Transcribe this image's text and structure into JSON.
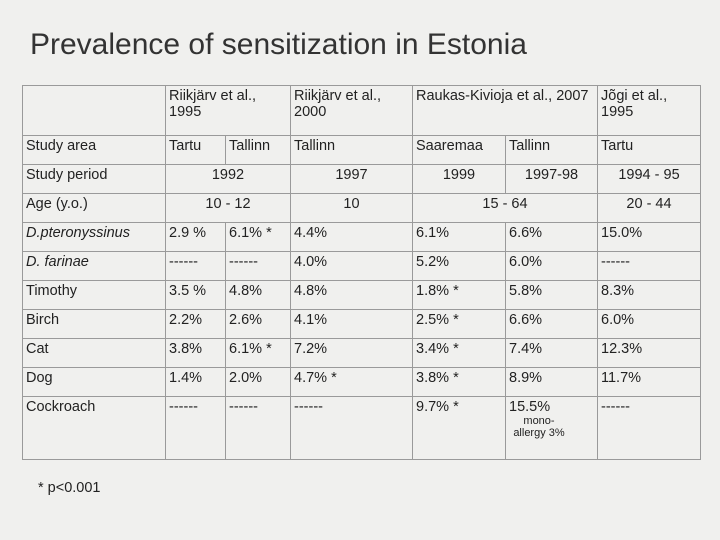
{
  "header": {
    "title": "Prevalence of sensitization in Estonia"
  },
  "table": {
    "authors": [
      "Riikjärv et al., 1995",
      "Riikjärv et al., 2000",
      "Raukas-Kivioja et al., 2007",
      "Jõgi et al., 1995"
    ],
    "study_area": {
      "label": "Study area",
      "values": [
        "Tartu",
        "Tallinn",
        "Tallinn",
        "Saaremaa",
        "Tallinn",
        "Tartu"
      ]
    },
    "study_period": {
      "label": "Study period",
      "values": [
        "1992",
        "1997",
        "1999",
        "1997-98",
        "1994 - 95"
      ]
    },
    "age": {
      "label": "Age (y.o.)",
      "values": [
        "10 - 12",
        "10",
        "15 - 64",
        "20 - 44"
      ]
    },
    "rows": [
      [
        "D.pteronyssinus",
        "2.9 %",
        "6.1% *",
        "4.4%",
        "6.1%",
        "6.6%",
        "15.0%"
      ],
      [
        "D. farinae",
        "------",
        "------",
        "4.0%",
        "5.2%",
        "6.0%",
        "------"
      ],
      [
        "Timothy",
        "3.5 %",
        "4.8%",
        "4.8%",
        "1.8% *",
        "5.8%",
        "8.3%"
      ],
      [
        "Birch",
        "2.2%",
        "2.6%",
        "4.1%",
        "2.5% *",
        "6.6%",
        "6.0%"
      ],
      [
        "Cat",
        "3.8%",
        "6.1% *",
        "7.2%",
        "3.4% *",
        "7.4%",
        "12.3%"
      ],
      [
        "Dog",
        "1.4%",
        "2.0%",
        "4.7% *",
        "3.8% *",
        "8.9%",
        "11.7%"
      ],
      [
        "Cockroach",
        "------",
        "------",
        "------",
        "9.7% *",
        "15.5%",
        "------"
      ]
    ],
    "cockroach_note": "mono-allergy 3%"
  },
  "footnote": "* p<0.001"
}
